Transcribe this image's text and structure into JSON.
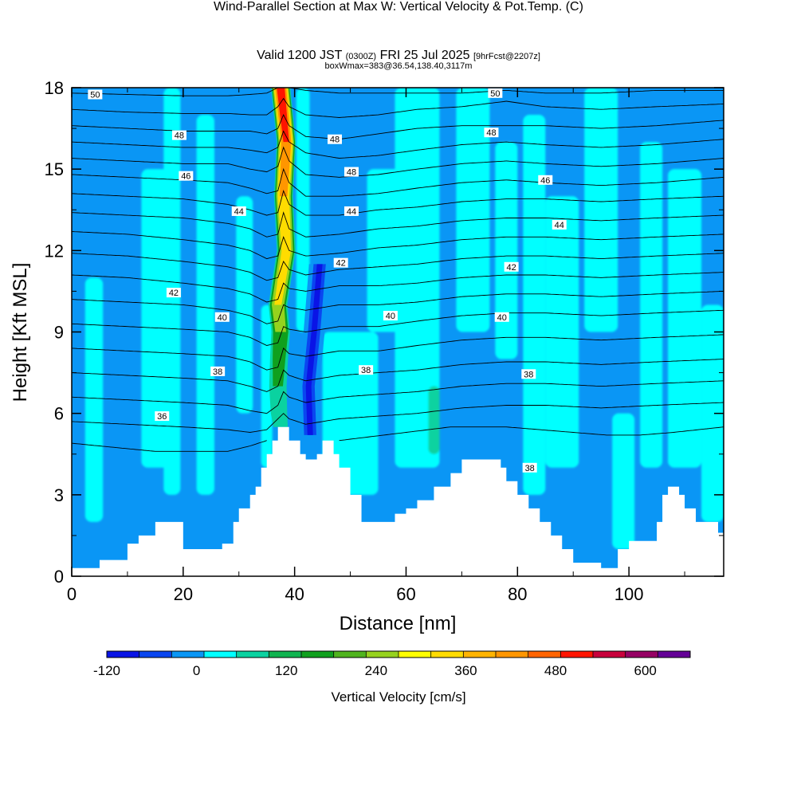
{
  "header": {
    "title": "Wind-Parallel Section at Max W: Vertical Velocity & Pot.Temp.",
    "copyright": "(C)",
    "valid_main": "Valid 1200 JST",
    "valid_utc": "(0300Z)",
    "valid_date": "FRI 25 Jul 2025",
    "forecast": "[9hrFcst@2207z]",
    "box_info": "boxWmax=383@36.54,138.40,3117m"
  },
  "chart_data": {
    "type": "heatmap",
    "xlabel": "Distance [nm]",
    "ylabel": "Height [Kft MSL]",
    "xlim": [
      0,
      117
    ],
    "ylim": [
      0,
      18
    ],
    "x_ticks": [
      0,
      20,
      40,
      60,
      80,
      100
    ],
    "y_ticks": [
      0,
      3,
      6,
      9,
      12,
      15,
      18
    ],
    "colorbar": {
      "label": "Vertical Velocity [cm/s]",
      "min": -120,
      "max": 660,
      "step": 40,
      "tick_values": [
        -120,
        0,
        120,
        240,
        360,
        480,
        600
      ],
      "colors": [
        "#0a14e6",
        "#0a46f0",
        "#0a96f5",
        "#00ffff",
        "#0ad2a0",
        "#10b450",
        "#10a01e",
        "#50b41e",
        "#96d21e",
        "#ffff00",
        "#ffdc00",
        "#ffb400",
        "#ff9600",
        "#ff6400",
        "#ff1400",
        "#c8003c",
        "#960064",
        "#640096"
      ]
    },
    "background_w": -20,
    "updraft": {
      "name": "Max W updraft core",
      "x": [
        37.5,
        38.5,
        38.0,
        38.5,
        37.0,
        37.5,
        37.2,
        37.0,
        37.2,
        37.5
      ],
      "y": [
        18,
        16,
        14,
        12,
        10,
        9,
        8,
        7,
        6,
        5.5
      ],
      "peak_w": [
        520,
        480,
        420,
        360,
        320,
        280,
        200,
        160,
        120,
        80
      ]
    },
    "downdraft": {
      "name": "Downdraft",
      "x": [
        44.5,
        43.5,
        42.5,
        42.8
      ],
      "y": [
        11.5,
        9,
        7,
        5.2
      ],
      "peak_w": [
        -60,
        -100,
        -120,
        -100
      ]
    },
    "bands": [
      {
        "x": 4,
        "half_width": 1.6,
        "y0": 2,
        "y1": 11,
        "w": 10
      },
      {
        "x": 15,
        "half_width": 2.5,
        "y0": 4,
        "y1": 15,
        "w": 10
      },
      {
        "x": 18,
        "half_width": 1.5,
        "y0": 3,
        "y1": 18,
        "w": 10
      },
      {
        "x": 24,
        "half_width": 1.6,
        "y0": 3,
        "y1": 17,
        "w": 10
      },
      {
        "x": 31,
        "half_width": 1.5,
        "y0": 6,
        "y1": 14,
        "w": 10
      },
      {
        "x": 35,
        "half_width": 1.0,
        "y0": 4,
        "y1": 10,
        "w": 10
      },
      {
        "x": 41.5,
        "half_width": 1.2,
        "y0": 9,
        "y1": 18,
        "w": 10
      },
      {
        "x": 50,
        "half_width": 5,
        "y0": 3,
        "y1": 9,
        "w": 10
      },
      {
        "x": 56,
        "half_width": 3,
        "y0": 9,
        "y1": 15,
        "w": 10
      },
      {
        "x": 62,
        "half_width": 4,
        "y0": 4,
        "y1": 18,
        "w": 10
      },
      {
        "x": 65,
        "half_width": 1.0,
        "y0": 4.5,
        "y1": 7,
        "w": 60
      },
      {
        "x": 72,
        "half_width": 3,
        "y0": 9,
        "y1": 18,
        "w": 10
      },
      {
        "x": 78,
        "half_width": 2,
        "y0": 8,
        "y1": 16,
        "w": 10
      },
      {
        "x": 83,
        "half_width": 2,
        "y0": 3,
        "y1": 17,
        "w": 10
      },
      {
        "x": 88,
        "half_width": 3,
        "y0": 4,
        "y1": 14,
        "w": 10
      },
      {
        "x": 95,
        "half_width": 3,
        "y0": 9,
        "y1": 18,
        "w": 10
      },
      {
        "x": 99,
        "half_width": 2,
        "y0": 1,
        "y1": 6,
        "w": 10
      },
      {
        "x": 104,
        "half_width": 2,
        "y0": 4,
        "y1": 16,
        "w": 10
      },
      {
        "x": 110,
        "half_width": 3,
        "y0": 4,
        "y1": 15,
        "w": 10
      },
      {
        "x": 115,
        "half_width": 2,
        "y0": 2,
        "y1": 10,
        "w": 10
      }
    ],
    "terrain": {
      "x": [
        0,
        1,
        5,
        7,
        10,
        12,
        15,
        18,
        20,
        22,
        25,
        27,
        29,
        30,
        32,
        33,
        34,
        35,
        36,
        37,
        38,
        39,
        40,
        41,
        42,
        43,
        44,
        45,
        46,
        47,
        48,
        50,
        52,
        55,
        58,
        60,
        62,
        65,
        68,
        70,
        72,
        75,
        77,
        78,
        80,
        82,
        84,
        86,
        88,
        90,
        92,
        94,
        95,
        96,
        97,
        98,
        100,
        101,
        102,
        104,
        105,
        106,
        107,
        108,
        109,
        110,
        112,
        114,
        116,
        117
      ],
      "y": [
        0.3,
        0.3,
        0.6,
        0.6,
        1.2,
        1.5,
        2.0,
        2.0,
        1.0,
        1.0,
        1.0,
        1.2,
        2.0,
        2.5,
        3.0,
        3.3,
        4.0,
        4.5,
        5.0,
        5.5,
        5.5,
        5.0,
        5.0,
        4.5,
        4.3,
        4.3,
        4.5,
        5.0,
        5.0,
        4.5,
        4.0,
        3.0,
        2.0,
        2.0,
        2.3,
        2.5,
        2.8,
        3.3,
        3.8,
        4.3,
        4.3,
        4.3,
        4.0,
        3.5,
        3.0,
        2.5,
        2.0,
        1.5,
        1.0,
        0.5,
        0.5,
        0.5,
        0.3,
        0.3,
        0.3,
        1.0,
        1.3,
        1.3,
        1.3,
        1.3,
        2.0,
        3.0,
        3.3,
        3.3,
        3.0,
        2.5,
        2.0,
        2.0,
        1.6,
        1.6
      ]
    },
    "theta_contours": [
      {
        "x": [
          0,
          10,
          20,
          28,
          32,
          35,
          37,
          38,
          39,
          42,
          48,
          55,
          62,
          70,
          78,
          85,
          95,
          105,
          117
        ],
        "y": [
          17.8,
          17.75,
          17.7,
          17.7,
          17.75,
          17.8,
          18.0,
          18.0,
          18.0,
          17.9,
          17.8,
          17.8,
          17.8,
          17.8,
          17.9,
          17.8,
          17.8,
          17.9,
          17.9
        ]
      },
      {
        "x": [
          0,
          10,
          20,
          28,
          32,
          35,
          37,
          38,
          39,
          42,
          48,
          55,
          62,
          70,
          78,
          85,
          95,
          105,
          117
        ],
        "y": [
          17.2,
          17.1,
          17.05,
          17.05,
          17.0,
          17.0,
          17.3,
          17.6,
          17.3,
          17.0,
          16.9,
          17.0,
          17.2,
          17.3,
          17.5,
          17.3,
          17.2,
          17.3,
          17.4
        ]
      },
      {
        "x": [
          0,
          10,
          20,
          28,
          32,
          35,
          37,
          38,
          39,
          42,
          48,
          55,
          62,
          70,
          78,
          85,
          95,
          105,
          117
        ],
        "y": [
          16.6,
          16.5,
          16.4,
          16.4,
          16.4,
          16.3,
          16.5,
          17.0,
          16.6,
          16.2,
          16.1,
          16.3,
          16.5,
          16.6,
          16.6,
          16.6,
          16.5,
          16.6,
          16.8
        ]
      },
      {
        "x": [
          0,
          10,
          20,
          28,
          32,
          35,
          37,
          38,
          39,
          42,
          48,
          55,
          62,
          70,
          78,
          85,
          95,
          105,
          117
        ],
        "y": [
          16.0,
          15.9,
          15.8,
          15.8,
          15.7,
          15.6,
          15.8,
          16.4,
          16.0,
          15.6,
          15.4,
          15.5,
          15.7,
          15.9,
          16.0,
          15.9,
          15.8,
          15.9,
          16.1
        ]
      },
      {
        "x": [
          0,
          10,
          20,
          28,
          32,
          35,
          37,
          38,
          39,
          42,
          48,
          55,
          62,
          70,
          78,
          85,
          95,
          105,
          117
        ],
        "y": [
          15.4,
          15.3,
          15.2,
          15.2,
          15.0,
          14.9,
          15.1,
          15.8,
          15.3,
          14.8,
          14.7,
          14.8,
          15.0,
          15.2,
          15.3,
          15.2,
          15.1,
          15.2,
          15.4
        ]
      },
      {
        "x": [
          0,
          10,
          20,
          28,
          32,
          35,
          37,
          38,
          39,
          42,
          48,
          55,
          62,
          70,
          78,
          85,
          95,
          105,
          117
        ],
        "y": [
          14.8,
          14.7,
          14.6,
          14.5,
          14.3,
          14.1,
          14.2,
          15.0,
          14.5,
          14.0,
          14.0,
          14.1,
          14.3,
          14.5,
          14.6,
          14.5,
          14.4,
          14.5,
          14.7
        ]
      },
      {
        "x": [
          0,
          10,
          20,
          28,
          32,
          35,
          37,
          38,
          39,
          42,
          48,
          55,
          62,
          70,
          78,
          85,
          95,
          105,
          117
        ],
        "y": [
          14.1,
          14.0,
          13.9,
          13.7,
          13.5,
          13.3,
          13.4,
          14.2,
          13.7,
          13.3,
          13.3,
          13.5,
          13.6,
          13.8,
          13.9,
          13.9,
          13.8,
          13.9,
          14.0
        ]
      },
      {
        "x": [
          0,
          10,
          20,
          28,
          32,
          35,
          37,
          38,
          39,
          42,
          48,
          55,
          62,
          70,
          78,
          85,
          95,
          105,
          117
        ],
        "y": [
          13.4,
          13.3,
          13.2,
          13.0,
          12.8,
          12.5,
          12.6,
          13.4,
          12.8,
          12.5,
          12.6,
          12.8,
          12.9,
          13.1,
          13.2,
          13.2,
          13.1,
          13.2,
          13.3
        ]
      },
      {
        "x": [
          0,
          10,
          20,
          28,
          32,
          35,
          37,
          38,
          39,
          42,
          48,
          55,
          62,
          70,
          78,
          85,
          95,
          105,
          117
        ],
        "y": [
          12.7,
          12.6,
          12.4,
          12.2,
          12.0,
          11.7,
          11.8,
          12.5,
          12.0,
          11.8,
          11.9,
          12.1,
          12.2,
          12.4,
          12.5,
          12.5,
          12.4,
          12.5,
          12.6
        ]
      },
      {
        "x": [
          0,
          10,
          20,
          28,
          32,
          35,
          37,
          38,
          39,
          42,
          48,
          55,
          62,
          70,
          78,
          85,
          95,
          105,
          117
        ],
        "y": [
          11.9,
          11.8,
          11.6,
          11.4,
          11.2,
          10.9,
          11.0,
          11.6,
          11.3,
          11.1,
          11.3,
          11.4,
          11.5,
          11.7,
          11.8,
          11.8,
          11.7,
          11.8,
          11.9
        ]
      },
      {
        "x": [
          0,
          10,
          20,
          28,
          32,
          35,
          37,
          38,
          39,
          42,
          48,
          55,
          62,
          70,
          78,
          85,
          95,
          105,
          117
        ],
        "y": [
          11.1,
          11.0,
          10.8,
          10.6,
          10.4,
          10.1,
          10.2,
          10.8,
          10.6,
          10.5,
          10.7,
          10.7,
          10.8,
          11.0,
          11.1,
          11.1,
          11.0,
          11.1,
          11.2
        ]
      },
      {
        "x": [
          0,
          10,
          20,
          28,
          32,
          35,
          37,
          38,
          39,
          42,
          48,
          55,
          62,
          70,
          78,
          85,
          95,
          105,
          117
        ],
        "y": [
          10.2,
          10.1,
          10.0,
          9.8,
          9.6,
          9.3,
          9.4,
          10.0,
          9.9,
          9.8,
          10.0,
          10.0,
          10.1,
          10.3,
          10.4,
          10.4,
          10.3,
          10.4,
          10.5
        ]
      },
      {
        "x": [
          0,
          10,
          20,
          28,
          32,
          35,
          37,
          38,
          39,
          42,
          48,
          55,
          62,
          70,
          78,
          85,
          95,
          105,
          117
        ],
        "y": [
          9.3,
          9.2,
          9.1,
          9.0,
          8.8,
          8.5,
          8.6,
          9.2,
          9.1,
          9.0,
          9.2,
          9.2,
          9.4,
          9.6,
          9.7,
          9.7,
          9.6,
          9.7,
          9.8
        ]
      },
      {
        "x": [
          0,
          10,
          20,
          28,
          32,
          35,
          37,
          38,
          39,
          42,
          48,
          55,
          62,
          70,
          78,
          85,
          95,
          105,
          117
        ],
        "y": [
          8.4,
          8.3,
          8.2,
          8.1,
          7.9,
          7.6,
          7.7,
          8.4,
          8.2,
          8.1,
          8.3,
          8.3,
          8.5,
          8.7,
          8.8,
          8.8,
          8.7,
          8.8,
          8.9
        ]
      },
      {
        "x": [
          0,
          10,
          20,
          28,
          32,
          35,
          37,
          38,
          39,
          42,
          48,
          55,
          62,
          70,
          78,
          85,
          95,
          105,
          117
        ],
        "y": [
          7.5,
          7.4,
          7.3,
          7.2,
          7.0,
          6.8,
          7.0,
          7.6,
          7.4,
          7.2,
          7.4,
          7.5,
          7.6,
          7.8,
          7.9,
          7.9,
          7.8,
          7.9,
          8.0
        ]
      },
      {
        "x": [
          0,
          10,
          20,
          28,
          32,
          35,
          37,
          38,
          39,
          42,
          48,
          55,
          62,
          70,
          78,
          85,
          95,
          105,
          117
        ],
        "y": [
          6.6,
          6.5,
          6.4,
          6.3,
          6.1,
          6.0,
          6.3,
          6.8,
          6.6,
          6.4,
          6.6,
          6.7,
          6.8,
          7.0,
          7.1,
          7.1,
          7.0,
          7.1,
          7.2
        ]
      },
      {
        "x": [
          0,
          10,
          20,
          28,
          32,
          35,
          37,
          38,
          39,
          42,
          48,
          55,
          62,
          70,
          78,
          85,
          95,
          105,
          117
        ],
        "y": [
          5.7,
          5.6,
          5.5,
          5.4,
          5.3,
          5.4,
          5.8,
          6.0,
          5.8,
          5.6,
          5.8,
          5.9,
          6.0,
          6.2,
          6.3,
          6.3,
          6.2,
          6.3,
          6.4
        ]
      },
      {
        "x": [
          0,
          5,
          10,
          15,
          20,
          25,
          28,
          32,
          35
        ],
        "y": [
          4.9,
          4.8,
          4.7,
          4.6,
          4.6,
          4.6,
          4.6,
          4.8,
          5.0
        ]
      },
      {
        "x": [
          48,
          52,
          56,
          60,
          64,
          68,
          72,
          78,
          84,
          90,
          96,
          102,
          108,
          117
        ],
        "y": [
          5.0,
          5.1,
          5.2,
          5.3,
          5.4,
          5.5,
          5.5,
          5.5,
          5.4,
          5.3,
          5.2,
          5.2,
          5.3,
          5.5
        ]
      }
    ],
    "theta_labels": [
      {
        "text": "50",
        "x": 4.2,
        "y": 17.75
      },
      {
        "text": "50",
        "x": 76,
        "y": 17.8
      },
      {
        "text": "48",
        "x": 19.3,
        "y": 16.25
      },
      {
        "text": "48",
        "x": 47.2,
        "y": 16.1
      },
      {
        "text": "48",
        "x": 75.3,
        "y": 16.35
      },
      {
        "text": "48",
        "x": 50.2,
        "y": 14.9
      },
      {
        "text": "46",
        "x": 20.5,
        "y": 14.75
      },
      {
        "text": "46",
        "x": 85,
        "y": 14.6
      },
      {
        "text": "44",
        "x": 30,
        "y": 13.45
      },
      {
        "text": "44",
        "x": 50.2,
        "y": 13.45
      },
      {
        "text": "44",
        "x": 87.5,
        "y": 12.95
      },
      {
        "text": "42",
        "x": 48.3,
        "y": 11.55
      },
      {
        "text": "42",
        "x": 78.9,
        "y": 11.4
      },
      {
        "text": "42",
        "x": 18.3,
        "y": 10.45
      },
      {
        "text": "40",
        "x": 27,
        "y": 9.55
      },
      {
        "text": "40",
        "x": 57.2,
        "y": 9.6
      },
      {
        "text": "40",
        "x": 77.2,
        "y": 9.55
      },
      {
        "text": "38",
        "x": 26.2,
        "y": 7.55
      },
      {
        "text": "38",
        "x": 52.8,
        "y": 7.6
      },
      {
        "text": "38",
        "x": 82,
        "y": 7.45
      },
      {
        "text": "38",
        "x": 82.2,
        "y": 4.0
      },
      {
        "text": "36",
        "x": 16.2,
        "y": 5.9
      }
    ]
  }
}
